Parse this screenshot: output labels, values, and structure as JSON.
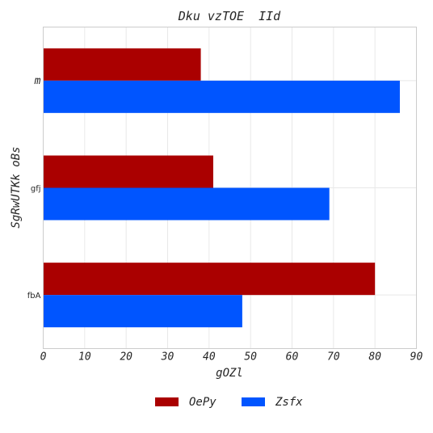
{
  "chart_data": {
    "type": "bar",
    "orientation": "horizontal",
    "title": "Dku vzTOE  IId",
    "xlabel": "gOZl",
    "ylabel": "SgRwUTKk oBs",
    "categories": [
      "m",
      "gfj",
      "fbA"
    ],
    "series": [
      {
        "name": "OePy",
        "values": [
          38,
          41,
          80
        ],
        "color": "#aa0000"
      },
      {
        "name": "Zsfx",
        "values": [
          86,
          69,
          48
        ],
        "color": "#0055ff"
      }
    ],
    "xlim": [
      0,
      90
    ],
    "xticks": [
      0,
      10,
      20,
      30,
      40,
      50,
      60,
      70,
      80,
      90
    ],
    "grid": true,
    "legend": "bottom-center"
  }
}
